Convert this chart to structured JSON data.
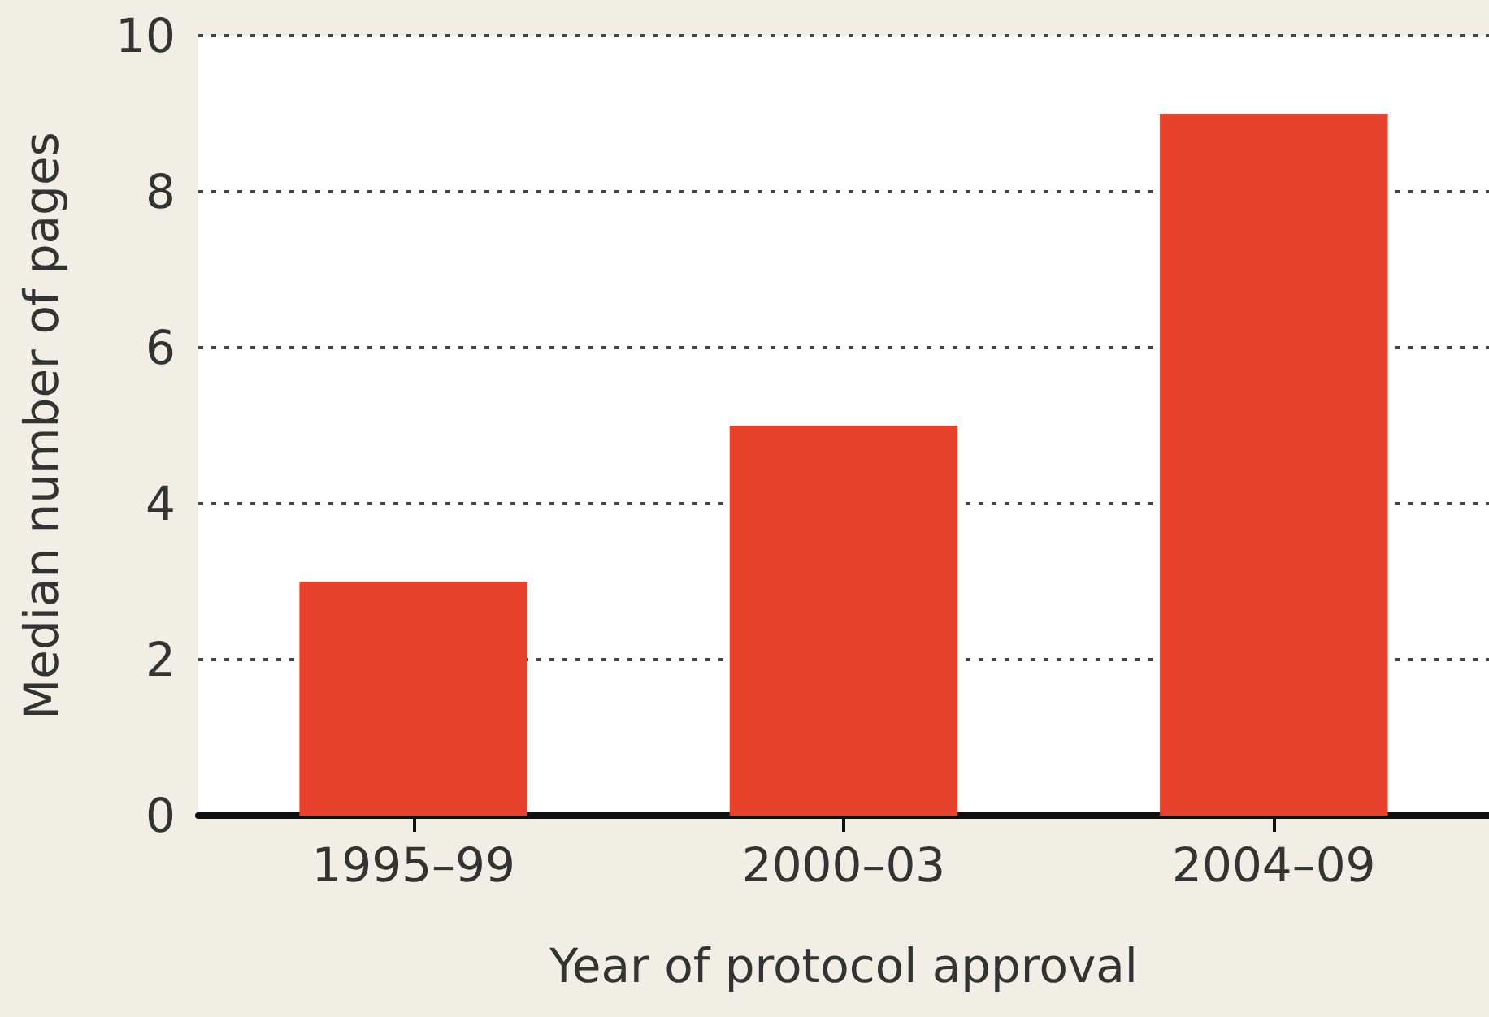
{
  "chart_data": {
    "type": "bar",
    "xlabel": "Year of protocol approval",
    "ylabel": "Median number of pages",
    "categories": [
      "1995–99",
      "2000–03",
      "2004–09"
    ],
    "values": [
      3,
      5,
      9
    ],
    "color": "#e8412c",
    "ylim": [
      0,
      10
    ],
    "yticks": [
      0,
      2,
      4,
      6,
      8,
      10
    ],
    "grid": "y"
  }
}
